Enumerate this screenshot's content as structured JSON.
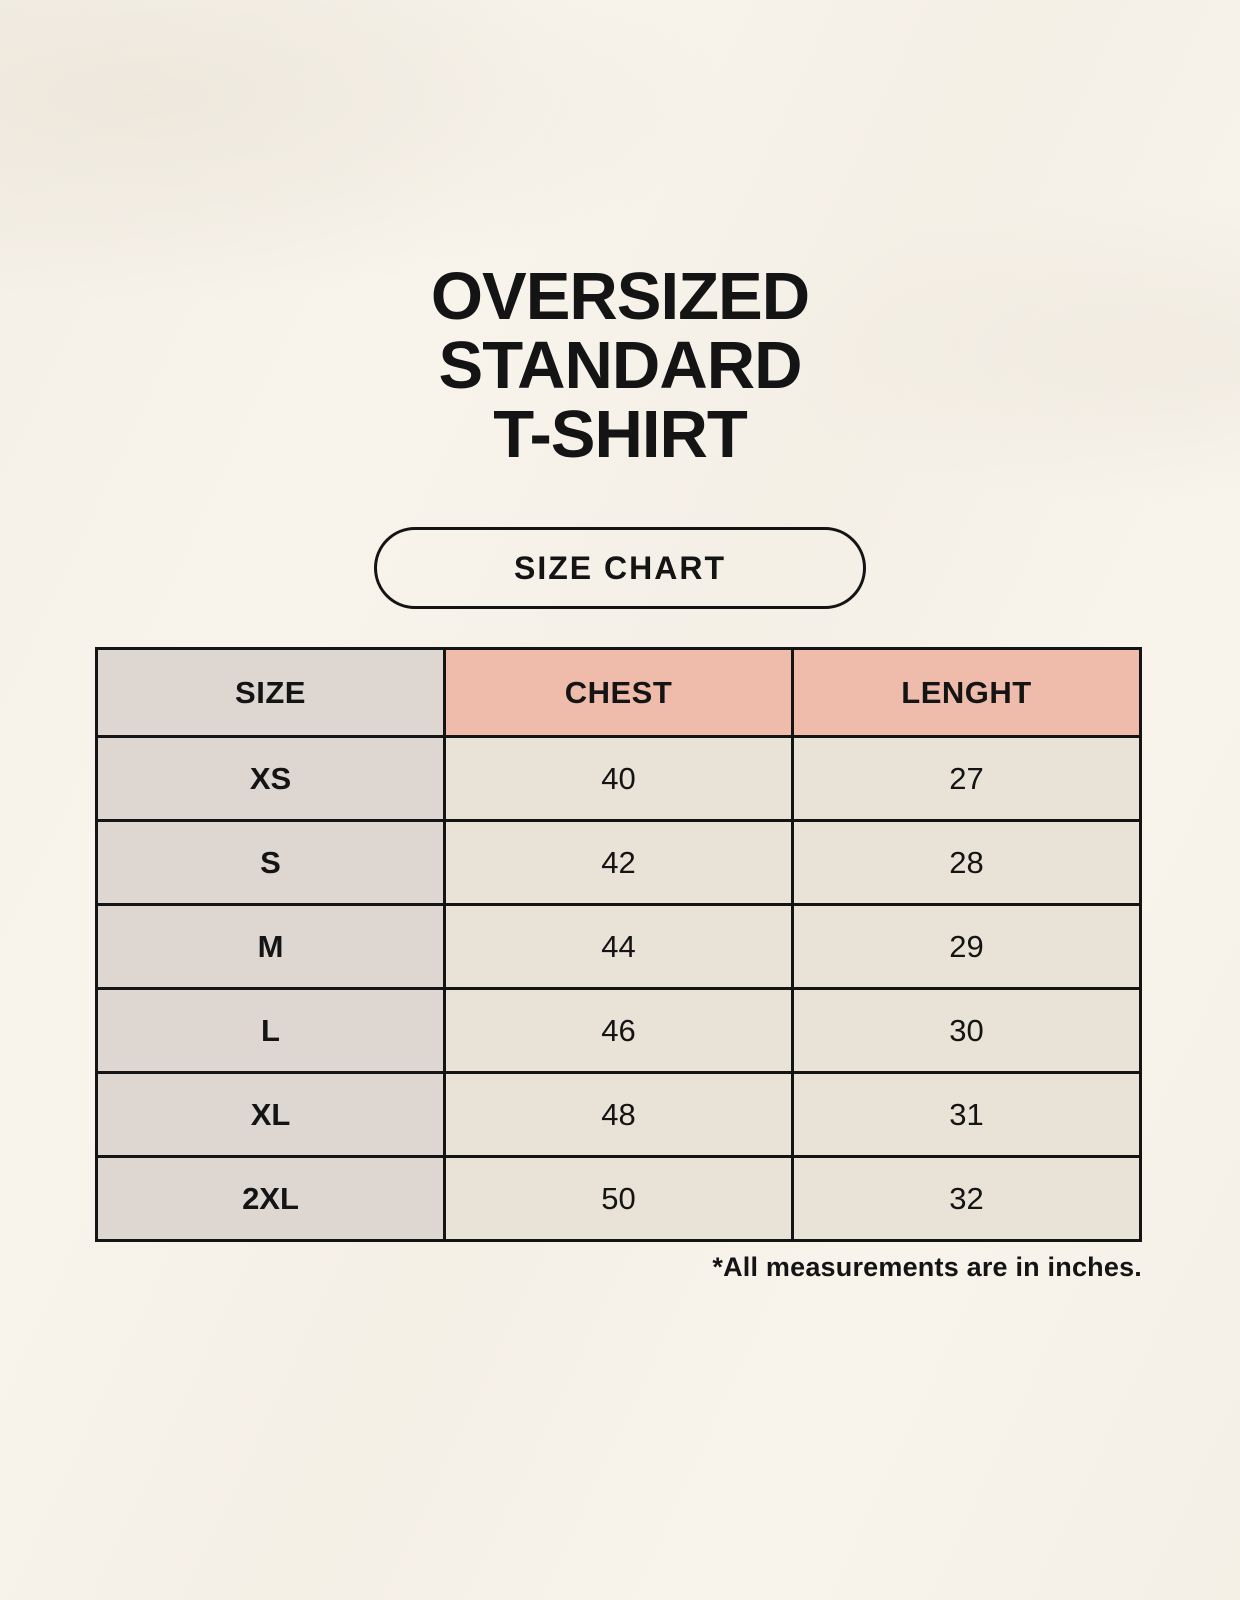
{
  "header": {
    "title_lines": [
      "OVERSIZED",
      "STANDARD",
      "T-SHIRT"
    ],
    "badge_label": "SIZE CHART"
  },
  "chart_data": {
    "type": "table",
    "title": "OVERSIZED STANDARD T-SHIRT",
    "subtitle": "SIZE CHART",
    "columns": [
      "SIZE",
      "CHEST",
      "LENGHT"
    ],
    "rows": [
      [
        "XS",
        "40",
        "27"
      ],
      [
        "S",
        "42",
        "28"
      ],
      [
        "M",
        "44",
        "29"
      ],
      [
        "L",
        "46",
        "30"
      ],
      [
        "XL",
        "48",
        "31"
      ],
      [
        "2XL",
        "50",
        "32"
      ]
    ],
    "units": "inches",
    "footnote": "*All measurements are in inches."
  },
  "colors": {
    "background": "#f8f4ec",
    "size_column_bg": "#ddd6d1",
    "measure_header_bg": "#efbcab",
    "body_cell_bg": "#e9e2d6",
    "border": "#141414",
    "text": "#141414"
  }
}
